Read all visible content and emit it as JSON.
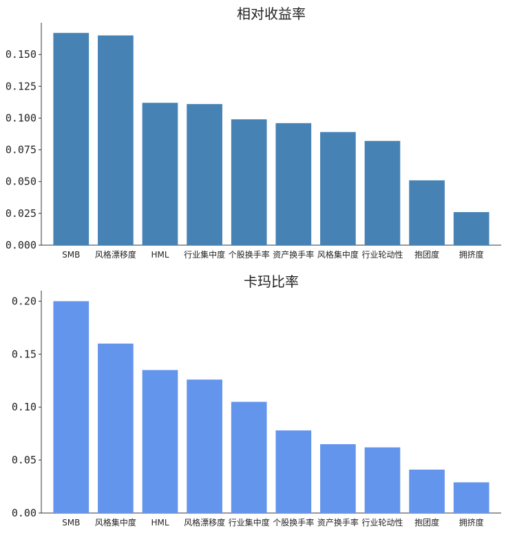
{
  "chart_data": [
    {
      "type": "bar",
      "title": "相对收益率",
      "categories": [
        "SMB",
        "风格漂移度",
        "HML",
        "行业集中度",
        "个股换手率",
        "资产换手率",
        "风格集中度",
        "行业轮动性",
        "抱团度",
        "拥挤度"
      ],
      "values": [
        0.167,
        0.165,
        0.112,
        0.111,
        0.099,
        0.096,
        0.089,
        0.082,
        0.051,
        0.026
      ],
      "ylim": [
        0,
        0.175
      ],
      "yticks": [
        "0.000",
        "0.025",
        "0.050",
        "0.075",
        "0.100",
        "0.125",
        "0.150"
      ],
      "ytick_values": [
        0,
        0.025,
        0.05,
        0.075,
        0.1,
        0.125,
        0.15
      ],
      "xlabel": "",
      "ylabel": "",
      "grid": false,
      "bar_color": "#4682b4"
    },
    {
      "type": "bar",
      "title": "卡玛比率",
      "categories": [
        "SMB",
        "风格集中度",
        "HML",
        "风格漂移度",
        "行业集中度",
        "个股换手率",
        "资产换手率",
        "行业轮动性",
        "抱团度",
        "拥挤度"
      ],
      "values": [
        0.2,
        0.16,
        0.135,
        0.126,
        0.105,
        0.078,
        0.065,
        0.062,
        0.041,
        0.029
      ],
      "ylim": [
        0,
        0.21
      ],
      "yticks": [
        "0.00",
        "0.05",
        "0.10",
        "0.15",
        "0.20"
      ],
      "ytick_values": [
        0,
        0.05,
        0.1,
        0.15,
        0.2
      ],
      "xlabel": "",
      "ylabel": "",
      "grid": false,
      "bar_color": "#6495ed"
    }
  ]
}
